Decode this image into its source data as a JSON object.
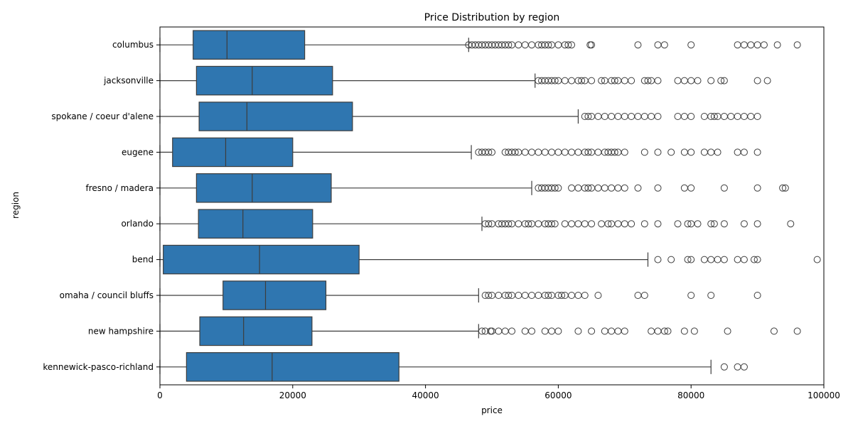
{
  "chart_data": {
    "type": "boxplot",
    "orientation": "horizontal",
    "title": "Price Distribution by region",
    "xlabel": "price",
    "ylabel": "region",
    "xlim": [
      0,
      100000
    ],
    "xticks": [
      0,
      20000,
      40000,
      60000,
      80000,
      100000
    ],
    "grid": false,
    "color": "#2f76b0",
    "regions": [
      {
        "name": "columbus",
        "whisker_low": 0,
        "q1": 5000,
        "median": 10100,
        "q3": 21800,
        "whisker_high": 46500,
        "outliers": [
          46500,
          47000,
          47500,
          48000,
          48500,
          49000,
          49500,
          50000,
          50500,
          51000,
          51500,
          52000,
          52500,
          53000,
          54000,
          55000,
          56000,
          57000,
          57500,
          58000,
          58500,
          59000,
          60000,
          61000,
          61500,
          62000,
          64800,
          65000,
          72000,
          75000,
          76000,
          80000,
          87000,
          88000,
          89000,
          90000,
          91000,
          93000,
          96000
        ]
      },
      {
        "name": "jacksonville",
        "whisker_low": 0,
        "q1": 5500,
        "median": 13900,
        "q3": 26000,
        "whisker_high": 56500,
        "outliers": [
          57000,
          57500,
          58000,
          58500,
          59000,
          59500,
          60000,
          61000,
          62000,
          63000,
          63500,
          64000,
          65000,
          66500,
          67000,
          68000,
          68500,
          69000,
          70000,
          71000,
          73000,
          73500,
          74000,
          75000,
          78000,
          79000,
          80000,
          81000,
          83000,
          84500,
          85000,
          90000,
          91500
        ]
      },
      {
        "name": "spokane / coeur d'alene",
        "whisker_low": 0,
        "q1": 5900,
        "median": 13100,
        "q3": 29000,
        "whisker_high": 63000,
        "outliers": [
          64000,
          64500,
          65000,
          66000,
          67000,
          68000,
          69000,
          70000,
          71000,
          72000,
          73000,
          74000,
          75000,
          78000,
          79000,
          80000,
          82000,
          83000,
          83500,
          84000,
          85000,
          86000,
          87000,
          88000,
          89000,
          90000
        ]
      },
      {
        "name": "eugene",
        "whisker_low": 0,
        "q1": 1900,
        "median": 9900,
        "q3": 20000,
        "whisker_high": 46900,
        "outliers": [
          48000,
          48500,
          49000,
          49500,
          50000,
          52000,
          52500,
          53000,
          53500,
          54000,
          55000,
          56000,
          57000,
          58000,
          59000,
          60000,
          61000,
          62000,
          63000,
          64000,
          64500,
          65000,
          66000,
          67000,
          67500,
          68000,
          68500,
          69000,
          70000,
          73000,
          75000,
          77000,
          79000,
          80000,
          82000,
          83000,
          84000,
          87000,
          88000,
          90000
        ]
      },
      {
        "name": "fresno / madera",
        "whisker_low": 0,
        "q1": 5500,
        "median": 13900,
        "q3": 25800,
        "whisker_high": 56000,
        "outliers": [
          57000,
          57500,
          58000,
          58500,
          59000,
          59500,
          60000,
          62000,
          63000,
          64000,
          64500,
          65000,
          66000,
          67000,
          68000,
          69000,
          70000,
          72000,
          75000,
          79000,
          80000,
          85000,
          90000,
          93800,
          94200
        ]
      },
      {
        "name": "orlando",
        "whisker_low": 0,
        "q1": 5800,
        "median": 12500,
        "q3": 23000,
        "whisker_high": 48500,
        "outliers": [
          49000,
          49500,
          50000,
          51000,
          51500,
          52000,
          52500,
          53000,
          54000,
          55000,
          55500,
          56000,
          57000,
          58000,
          58500,
          59000,
          59500,
          61000,
          62000,
          63000,
          64000,
          65000,
          66500,
          67500,
          68000,
          69000,
          70000,
          71000,
          73000,
          75000,
          78000,
          79500,
          80000,
          81000,
          83000,
          83500,
          85000,
          88000,
          90000,
          95000
        ]
      },
      {
        "name": "bend",
        "whisker_low": 0,
        "q1": 500,
        "median": 15000,
        "q3": 30000,
        "whisker_high": 73500,
        "outliers": [
          75000,
          77000,
          79500,
          80000,
          82000,
          83000,
          84000,
          85000,
          87000,
          88000,
          89500,
          90000,
          99000
        ]
      },
      {
        "name": "omaha / council bluffs",
        "whisker_low": 0,
        "q1": 9500,
        "median": 15900,
        "q3": 25000,
        "whisker_high": 48000,
        "outliers": [
          49000,
          49500,
          50000,
          51000,
          52000,
          52500,
          53000,
          54000,
          55000,
          56000,
          57000,
          58000,
          58500,
          59000,
          60000,
          60500,
          61000,
          62000,
          63000,
          64000,
          66000,
          72000,
          73000,
          80000,
          83000,
          90000
        ]
      },
      {
        "name": "new hampshire",
        "whisker_low": 0,
        "q1": 6000,
        "median": 12600,
        "q3": 22900,
        "whisker_high": 48000,
        "outliers": [
          48500,
          49000,
          49800,
          50000,
          51000,
          52000,
          53000,
          55000,
          56000,
          58000,
          59000,
          60000,
          63000,
          65000,
          67000,
          68000,
          69000,
          70000,
          74000,
          75000,
          76000,
          76500,
          79000,
          80500,
          85500,
          92500,
          96000
        ]
      },
      {
        "name": "kennewick-pasco-richland",
        "whisker_low": 0,
        "q1": 4000,
        "median": 16900,
        "q3": 36000,
        "whisker_high": 83000,
        "outliers": [
          85000,
          87000,
          88000
        ]
      }
    ]
  }
}
